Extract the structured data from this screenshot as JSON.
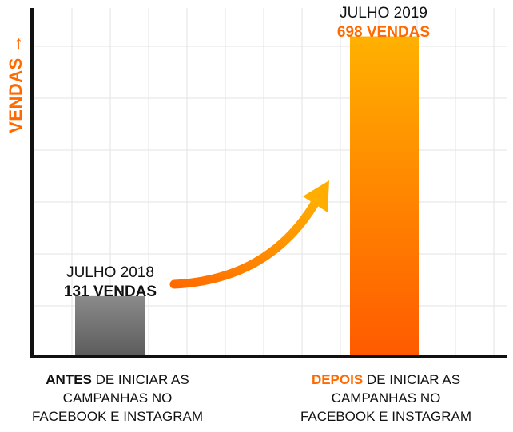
{
  "chart_data": {
    "type": "bar",
    "ylabel": "VENDAS →",
    "categories": [
      {
        "strong": "ANTES",
        "rest": " DE INICIAR AS",
        "line2": "CAMPANHAS NO",
        "line3": "FACEBOOK E INSTAGRAM"
      },
      {
        "strong": "DEPOIS",
        "rest": " DE INICIAR AS",
        "line2": "CAMPANHAS NO",
        "line3": "FACEBOOK E INSTAGRAM"
      }
    ],
    "values": [
      131,
      698
    ],
    "annotations": [
      {
        "title": "JULHO 2018",
        "value_label": "131 VENDAS"
      },
      {
        "title": "JULHO 2019",
        "value_label": "698 VENDAS"
      }
    ],
    "ylim": [
      0,
      760
    ],
    "grid": true,
    "colors": {
      "bar_before_top": "#8a8a8a",
      "bar_before_bottom": "#5c5c5c",
      "bar_after_top": "#ffb100",
      "bar_after_bottom": "#ff5a00",
      "accent": "#ff6a00",
      "axis": "#111111",
      "grid": "#e3e3e3"
    }
  }
}
